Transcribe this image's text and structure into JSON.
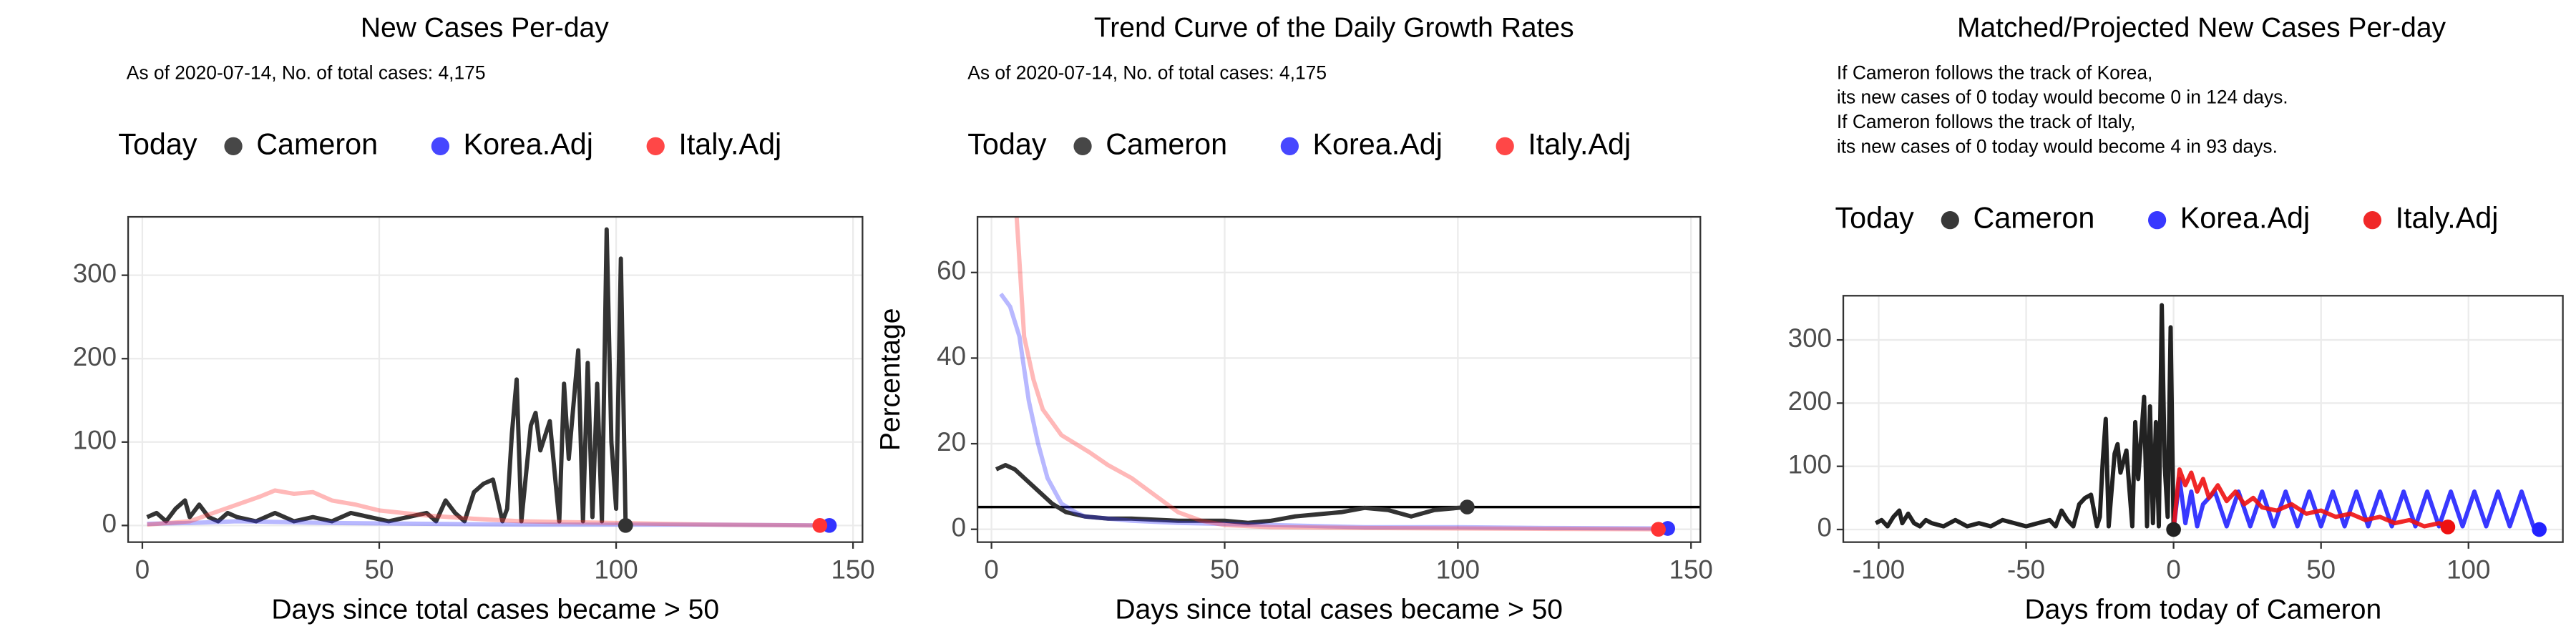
{
  "chart_data": [
    {
      "type": "line",
      "title": "New Cases Per-day",
      "subtitle": "As of 2020-07-14, No. of total cases: 4,175",
      "legend_title": "Today",
      "x_label": "Days since total cases became > 50",
      "xlim": [
        -3,
        152
      ],
      "xticks": [
        0,
        50,
        100,
        150
      ],
      "ylim": [
        -20,
        370
      ],
      "yticks": [
        0,
        100,
        200,
        300
      ],
      "grid": true,
      "series": [
        {
          "name": "Cameron",
          "color": "#333333",
          "alpha": 1,
          "x": [
            1,
            3,
            5,
            7,
            9,
            10,
            12,
            14,
            16,
            18,
            20,
            24,
            28,
            32,
            36,
            40,
            44,
            48,
            52,
            56,
            60,
            62,
            64,
            66,
            68,
            70,
            72,
            74,
            76,
            77,
            78,
            79,
            80,
            82,
            83,
            84,
            86,
            88,
            89,
            90,
            92,
            93,
            94,
            95,
            96,
            97,
            98,
            99,
            100,
            101,
            102
          ],
          "values": [
            10,
            15,
            5,
            20,
            30,
            10,
            25,
            10,
            5,
            15,
            10,
            5,
            15,
            5,
            10,
            5,
            15,
            10,
            5,
            10,
            15,
            5,
            30,
            15,
            5,
            40,
            50,
            55,
            5,
            20,
            110,
            175,
            5,
            120,
            135,
            90,
            125,
            5,
            170,
            80,
            210,
            5,
            195,
            10,
            170,
            5,
            355,
            100,
            20,
            320,
            0
          ]
        },
        {
          "name": "Korea.Adj",
          "color": "#3333ff",
          "alpha": 0.35,
          "x": [
            1,
            10,
            20,
            30,
            40,
            60,
            80,
            100,
            120,
            145
          ],
          "values": [
            2,
            3,
            5,
            4,
            3,
            2,
            1,
            1,
            1,
            0
          ]
        },
        {
          "name": "Italy.Adj",
          "color": "#ff3333",
          "alpha": 0.35,
          "x": [
            1,
            10,
            15,
            20,
            25,
            28,
            32,
            36,
            40,
            45,
            50,
            60,
            70,
            80,
            100,
            120,
            143
          ],
          "values": [
            1,
            5,
            15,
            25,
            35,
            42,
            38,
            40,
            30,
            25,
            18,
            12,
            8,
            5,
            3,
            1,
            0
          ]
        }
      ]
    },
    {
      "type": "line",
      "title": "Trend Curve of the Daily Growth Rates",
      "subtitle": "As of 2020-07-14, No. of total cases: 4,175",
      "legend_title": "Today",
      "x_label": "Days since total cases became > 50",
      "y_label": "Percentage",
      "xlim": [
        -3,
        152
      ],
      "xticks": [
        0,
        50,
        100,
        150
      ],
      "ylim": [
        -3,
        73
      ],
      "yticks": [
        0,
        20,
        40,
        60
      ],
      "grid": true,
      "hline": 5.2,
      "series": [
        {
          "name": "Cameron",
          "color": "#333333",
          "alpha": 1,
          "x": [
            1,
            3,
            5,
            7,
            10,
            13,
            16,
            20,
            25,
            30,
            40,
            50,
            55,
            60,
            65,
            70,
            75,
            80,
            85,
            90,
            95,
            100,
            102
          ],
          "values": [
            14,
            15,
            14,
            12,
            9,
            6,
            4,
            3,
            2.5,
            2.5,
            2,
            2,
            1.5,
            2,
            3,
            3.5,
            4,
            5,
            4.5,
            3,
            4.5,
            5,
            5.2
          ]
        },
        {
          "name": "Korea.Adj",
          "color": "#3333ff",
          "alpha": 0.35,
          "x": [
            2,
            4,
            6,
            8,
            10,
            12,
            15,
            18,
            20,
            25,
            30,
            40,
            60,
            80,
            100,
            120,
            145
          ],
          "values": [
            55,
            52,
            45,
            30,
            20,
            12,
            6,
            4,
            3,
            2.5,
            2,
            1.5,
            1,
            0.5,
            0.5,
            0.3,
            0.2
          ]
        },
        {
          "name": "Italy.Adj",
          "color": "#ff3333",
          "alpha": 0.35,
          "x": [
            5,
            7,
            9,
            11,
            13,
            15,
            18,
            21,
            25,
            30,
            35,
            40,
            45,
            50,
            60,
            80,
            100,
            120,
            143
          ],
          "values": [
            80,
            45,
            35,
            28,
            25,
            22,
            20,
            18,
            15,
            12,
            8,
            4,
            2,
            1,
            0.5,
            0.3,
            0.2,
            0.1,
            0
          ]
        }
      ]
    },
    {
      "type": "line",
      "title": "Matched/Projected New Cases Per-day",
      "notes": [
        "If Cameron follows the track of Korea,",
        "its new cases of 0 today would become 0 in 124 days.",
        "If Cameron follows the track of Italy,",
        "its new cases of 0 today would become 4 in 93 days."
      ],
      "legend_title": "Today",
      "x_label": "Days from today of Cameron",
      "xlim": [
        -112,
        132
      ],
      "xticks": [
        -100,
        -50,
        0,
        50,
        100
      ],
      "ylim": [
        -20,
        370
      ],
      "yticks": [
        0,
        100,
        200,
        300
      ],
      "grid": true,
      "series": [
        {
          "name": "Cameron",
          "color": "#222222",
          "alpha": 1,
          "x": [
            -101,
            -99,
            -97,
            -95,
            -93,
            -92,
            -90,
            -88,
            -86,
            -84,
            -82,
            -78,
            -74,
            -70,
            -66,
            -62,
            -58,
            -54,
            -50,
            -46,
            -42,
            -40,
            -38,
            -36,
            -34,
            -32,
            -30,
            -28,
            -26,
            -25,
            -24,
            -23,
            -22,
            -20,
            -19,
            -18,
            -16,
            -14,
            -13,
            -12,
            -10,
            -9,
            -8,
            -7,
            -6,
            -5,
            -4,
            -3,
            -2,
            -1,
            0
          ],
          "values": [
            10,
            15,
            5,
            20,
            30,
            10,
            25,
            10,
            5,
            15,
            10,
            5,
            15,
            5,
            10,
            5,
            15,
            10,
            5,
            10,
            15,
            5,
            30,
            15,
            5,
            40,
            50,
            55,
            5,
            20,
            110,
            175,
            5,
            120,
            135,
            90,
            125,
            5,
            170,
            80,
            210,
            5,
            195,
            10,
            170,
            5,
            355,
            100,
            20,
            320,
            0
          ]
        },
        {
          "name": "Korea.Adj",
          "color": "#2222ff",
          "alpha": 0.9,
          "x": [
            0,
            2,
            4,
            6,
            8,
            10,
            14,
            18,
            22,
            26,
            30,
            34,
            38,
            42,
            46,
            50,
            54,
            58,
            62,
            66,
            70,
            74,
            78,
            82,
            86,
            90,
            94,
            98,
            102,
            106,
            110,
            114,
            118,
            122,
            124
          ],
          "values": [
            0,
            80,
            10,
            60,
            5,
            40,
            60,
            5,
            60,
            5,
            60,
            5,
            60,
            5,
            60,
            5,
            60,
            5,
            60,
            5,
            60,
            5,
            60,
            5,
            60,
            5,
            60,
            5,
            60,
            5,
            60,
            5,
            60,
            5,
            0
          ]
        },
        {
          "name": "Italy.Adj",
          "color": "#ee1111",
          "alpha": 0.9,
          "x": [
            0,
            2,
            4,
            6,
            8,
            10,
            12,
            15,
            18,
            21,
            24,
            27,
            30,
            35,
            40,
            45,
            50,
            55,
            60,
            65,
            70,
            75,
            80,
            85,
            90,
            93
          ],
          "values": [
            0,
            95,
            70,
            90,
            60,
            80,
            50,
            70,
            45,
            60,
            40,
            50,
            35,
            30,
            40,
            25,
            30,
            20,
            25,
            15,
            20,
            10,
            15,
            5,
            10,
            4
          ]
        }
      ]
    }
  ]
}
